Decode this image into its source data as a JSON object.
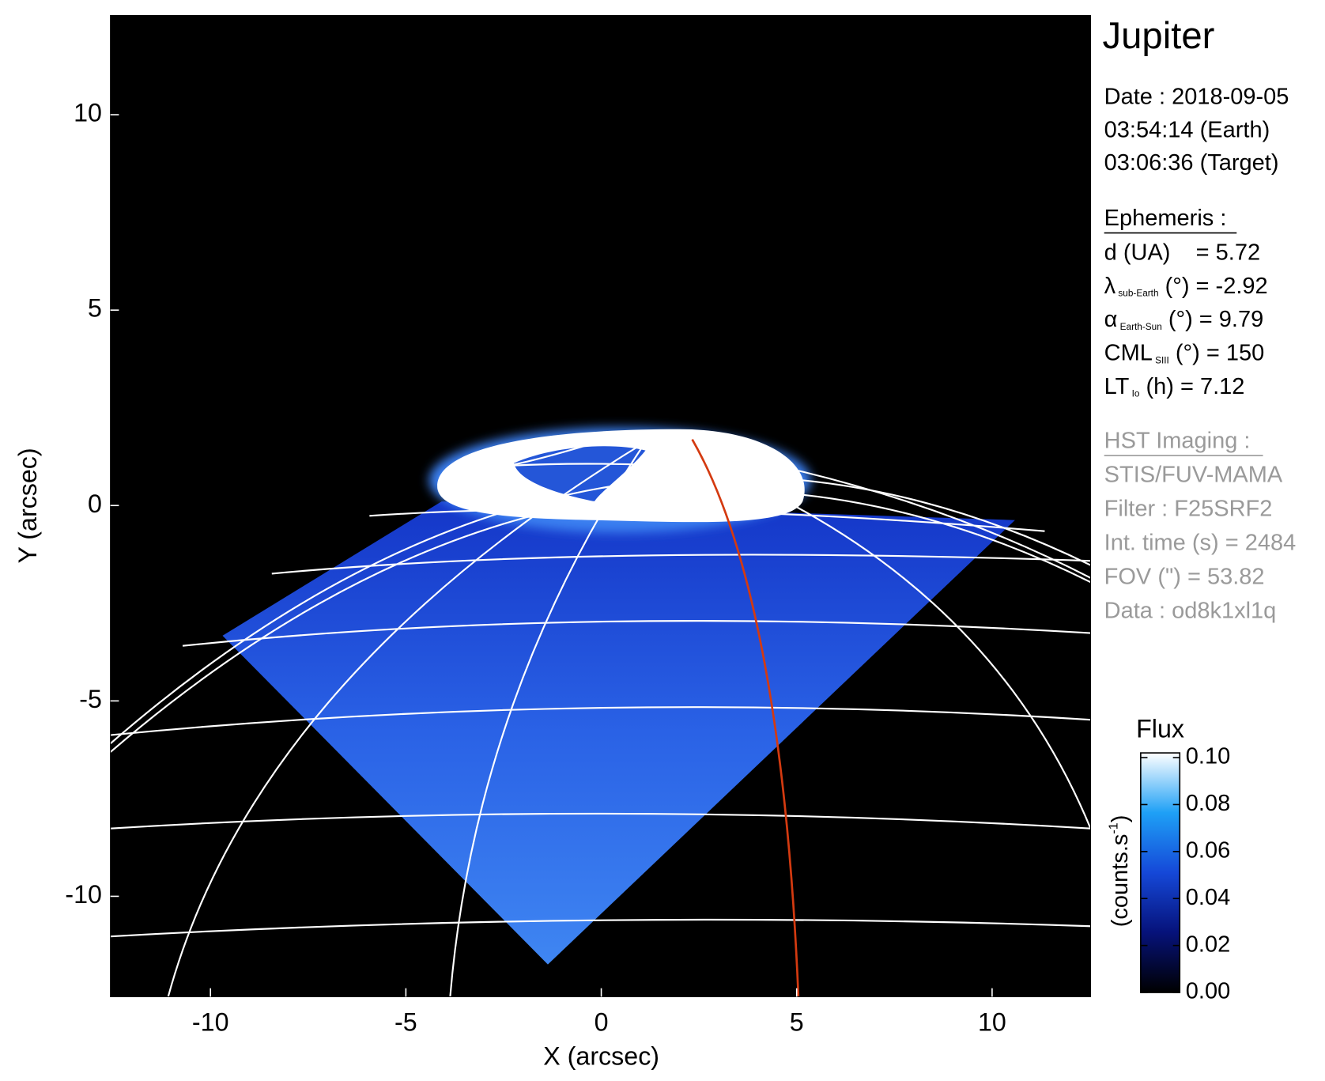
{
  "chart_data": {
    "type": "image",
    "x_label": "X (arcsec)",
    "y_label": "Y (arcsec)",
    "xlim": [
      -12.56,
      12.52
    ],
    "ylim": [
      -12.57,
      12.54
    ],
    "xticks": [
      -10,
      -5,
      0,
      5,
      10
    ],
    "yticks": [
      -10,
      -5,
      0,
      5,
      10
    ],
    "colorbar": {
      "title": "Flux",
      "label": "(counts.s",
      "label_sup": "-1",
      "label_end": ")",
      "lim": [
        0,
        0.102
      ],
      "ticks": [
        {
          "value": 0,
          "label": "0.00"
        },
        {
          "value": 0.02,
          "label": "0.02"
        },
        {
          "value": 0.04,
          "label": "0.04"
        },
        {
          "value": 0.06,
          "label": "0.06"
        },
        {
          "value": 0.08,
          "label": "0.08"
        },
        {
          "value": 0.1,
          "label": "0.10"
        }
      ]
    }
  },
  "info": {
    "title": "Jupiter",
    "date": [
      "Date : 2018-09-05",
      "03:54:14 (Earth)",
      "03:06:36 (Target)"
    ],
    "ephemeris": {
      "heading": "Ephemeris :",
      "rows": [
        {
          "text": "d (UA)    = 5.72"
        },
        {
          "symbol": "λ",
          "sub": "sub-Earth",
          "rest": " (°) = -2.92"
        },
        {
          "symbol": "α",
          "sub": "Earth-Sun",
          "rest": " (°) = 9.79"
        },
        {
          "symbol": "CML",
          "sub": "SIII",
          "rest": " (°) = 150"
        },
        {
          "symbol": "LT",
          "sub": "Io",
          "rest": " (h) = 7.12"
        }
      ]
    },
    "imaging": {
      "heading": "HST Imaging :",
      "rows": [
        "STIS/FUV-MAMA",
        "Filter : F25SRF2",
        "Int. time (s) = 2484",
        "FOV (\") = 53.82",
        "Data : od8k1xl1q"
      ]
    }
  }
}
